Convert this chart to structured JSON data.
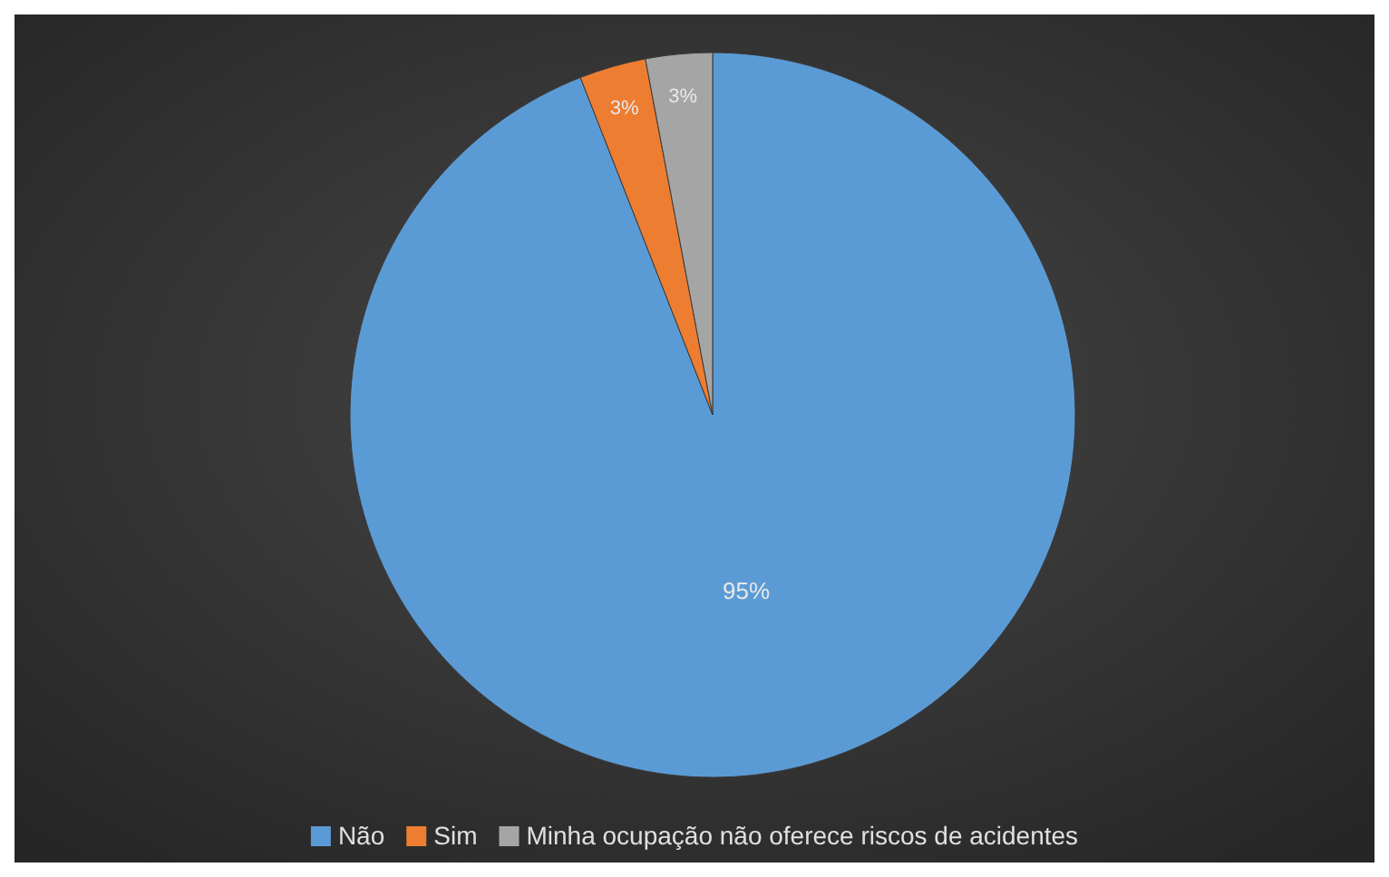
{
  "chart_data": {
    "type": "pie",
    "categories": [
      "Não",
      "Sim",
      "Minha ocupação não oferece riscos de acidentes"
    ],
    "values": [
      95,
      3,
      3
    ],
    "colors": [
      "#5b9bd5",
      "#ed7d31",
      "#a5a5a5"
    ],
    "value_labels": [
      "95%",
      "3%",
      "3%"
    ],
    "legend": "bottom"
  }
}
